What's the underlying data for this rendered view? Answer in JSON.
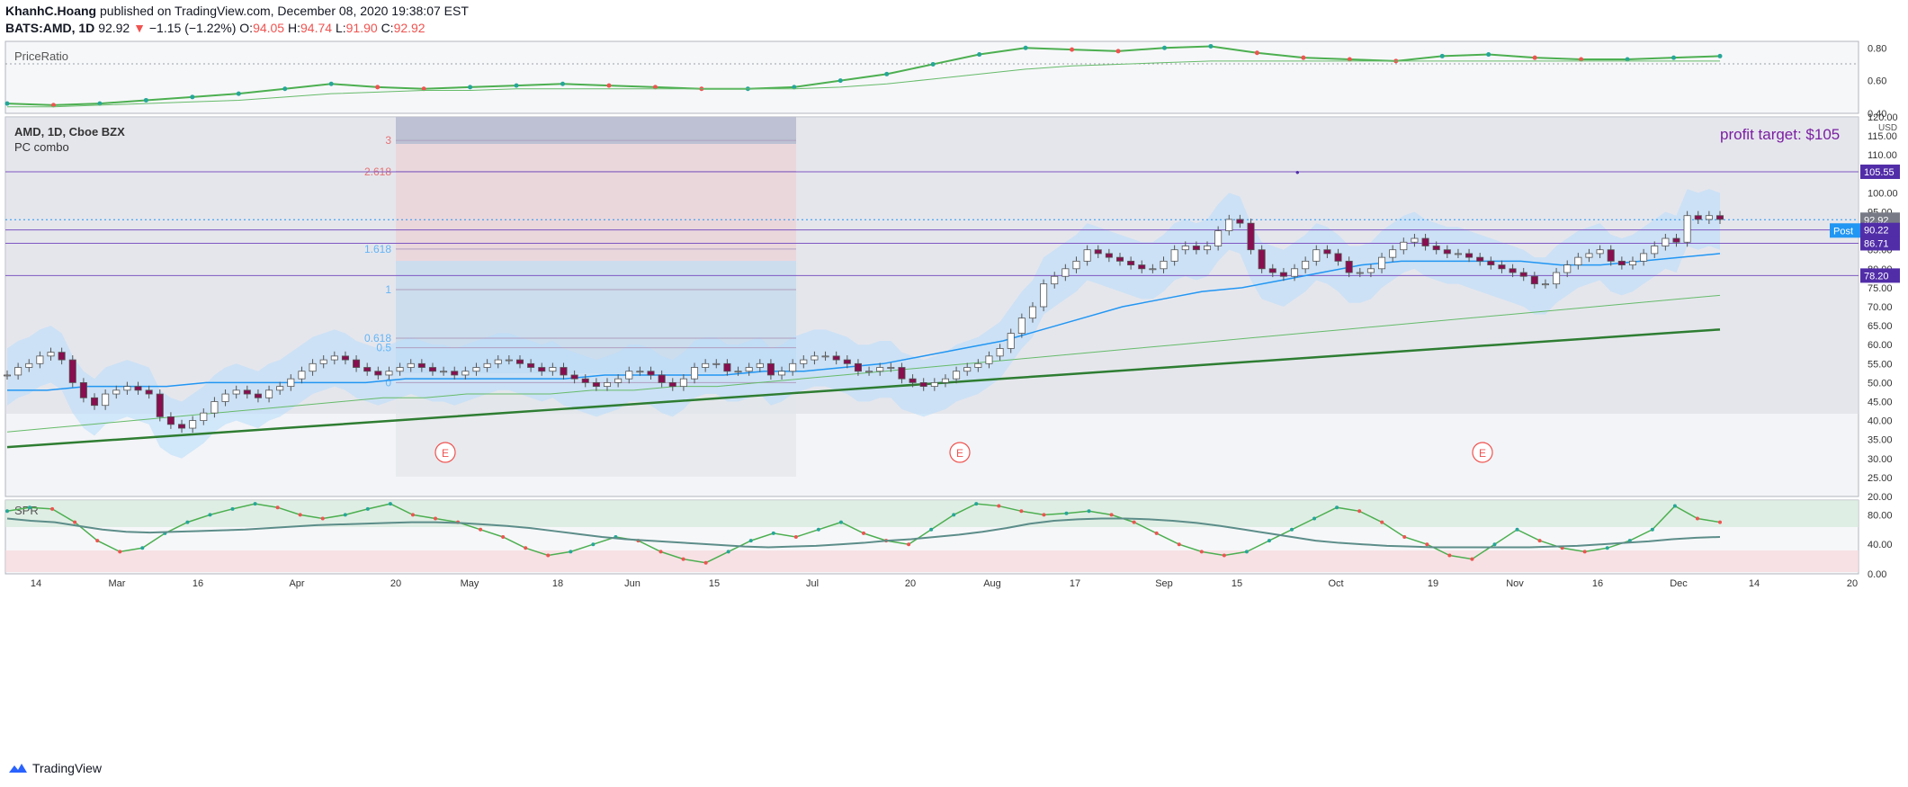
{
  "header": {
    "author": "KhanhC.Hoang",
    "published_text": "published on TradingView.com, December 08, 2020 19:38:07 EST",
    "symbol": "BATS:AMD, 1D",
    "last": "92.92",
    "change": "−1.15 (−1.22%)",
    "o_label": "O:",
    "o": "94.05",
    "h_label": "H:",
    "h": "94.74",
    "l_label": "L:",
    "l": "91.90",
    "c_label": "C:",
    "c": "92.92"
  },
  "footer": {
    "brand": "TradingView"
  },
  "colors": {
    "up": "#26a69a",
    "down": "#ef5350",
    "candle_up": "#ffffff",
    "candle_down": "#880e4f",
    "ma_fast": "#2196f3",
    "ma_mid": "#66bb6a",
    "ma_slow": "#2e7d32",
    "band": "#bbdefb"
  },
  "chart_data": [
    {
      "type": "line",
      "pane": "top",
      "label": "PriceRatio",
      "ylim": [
        0.4,
        0.84
      ],
      "y_ticks": [
        "0.80",
        "0.60",
        "0.40"
      ],
      "series": [
        {
          "values": [
            0.46,
            0.45,
            0.46,
            0.48,
            0.5,
            0.52,
            0.55,
            0.58,
            0.56,
            0.55,
            0.56,
            0.57,
            0.58,
            0.57,
            0.56,
            0.55,
            0.55,
            0.56,
            0.6,
            0.64,
            0.7,
            0.76,
            0.8,
            0.79,
            0.78,
            0.8,
            0.81,
            0.77,
            0.74,
            0.73,
            0.72,
            0.75,
            0.76,
            0.74,
            0.73,
            0.73,
            0.74,
            0.75
          ]
        },
        {
          "values": [
            0.44,
            0.44,
            0.45,
            0.46,
            0.47,
            0.48,
            0.5,
            0.52,
            0.53,
            0.54,
            0.54,
            0.55,
            0.55,
            0.55,
            0.55,
            0.55,
            0.55,
            0.55,
            0.56,
            0.58,
            0.61,
            0.64,
            0.67,
            0.69,
            0.7,
            0.71,
            0.72,
            0.72,
            0.72,
            0.72,
            0.72,
            0.72,
            0.72,
            0.72,
            0.72,
            0.72,
            0.72,
            0.72
          ]
        }
      ]
    },
    {
      "type": "candlestick",
      "pane": "main",
      "title": "AMD, 1D, Cboe BZX",
      "subtitle": "PC combo",
      "currency": "USD",
      "ylim": [
        20,
        120
      ],
      "y_ticks": [
        "120.00",
        "115.00",
        "110.00",
        "105.00",
        "100.00",
        "95.00",
        "90.00",
        "85.00",
        "80.00",
        "75.00",
        "70.00",
        "65.00",
        "60.00",
        "55.00",
        "50.00",
        "45.00",
        "40.00",
        "35.00",
        "30.00",
        "25.00",
        "20.00"
      ],
      "x_ticks": [
        "14",
        "Mar",
        "16",
        "Apr",
        "20",
        "May",
        "18",
        "Jun",
        "15",
        "Jul",
        "20",
        "Aug",
        "17",
        "Sep",
        "15",
        "Oct",
        "19",
        "Nov",
        "16",
        "Dec",
        "14",
        "20"
      ],
      "closes": [
        52,
        54,
        55,
        57,
        58,
        56,
        50,
        46,
        44,
        47,
        48,
        49,
        48,
        47,
        41,
        39,
        38,
        40,
        42,
        45,
        47,
        48,
        47,
        46,
        48,
        49,
        51,
        53,
        55,
        56,
        57,
        56,
        54,
        53,
        52,
        53,
        54,
        55,
        54,
        53,
        53,
        52,
        53,
        54,
        55,
        56,
        56,
        55,
        54,
        53,
        54,
        52,
        51,
        50,
        49,
        50,
        51,
        53,
        53,
        52,
        50,
        49,
        51,
        54,
        55,
        55,
        53,
        53,
        54,
        55,
        52,
        53,
        55,
        56,
        57,
        57,
        56,
        55,
        53,
        53,
        54,
        54,
        51,
        50,
        49,
        50,
        51,
        53,
        54,
        55,
        57,
        59,
        63,
        67,
        70,
        76,
        78,
        80,
        82,
        85,
        84,
        83,
        82,
        81,
        80,
        80,
        82,
        85,
        86,
        85,
        86,
        90,
        93,
        92,
        85,
        80,
        79,
        78,
        80,
        82,
        85,
        84,
        82,
        79,
        79,
        80,
        83,
        85,
        87,
        88,
        86,
        85,
        84,
        84,
        83,
        82,
        81,
        80,
        79,
        78,
        76,
        76,
        79,
        81,
        83,
        84,
        85,
        82,
        81,
        82,
        84,
        86,
        88,
        87,
        94,
        93,
        94,
        93
      ],
      "ma_fast": [
        48,
        48,
        49,
        49,
        49,
        50,
        50,
        50,
        50,
        50,
        51,
        51,
        51,
        51,
        51,
        52,
        52,
        52,
        52,
        53,
        53,
        54,
        55,
        57,
        59,
        61,
        64,
        67,
        70,
        72,
        74,
        75,
        77,
        79,
        81,
        82,
        82,
        82,
        82,
        81,
        81,
        82,
        83,
        84
      ],
      "ma_mid": [
        37,
        38,
        39,
        40,
        41,
        42,
        43,
        44,
        45,
        46,
        46,
        47,
        47,
        47,
        48,
        48,
        49,
        49,
        50,
        51,
        52,
        53,
        54,
        55,
        56,
        57,
        58,
        59,
        60,
        61,
        62,
        63,
        64,
        65,
        66,
        67,
        68,
        69,
        70,
        71,
        72,
        73
      ],
      "ma_slow": [
        33,
        34,
        35,
        36,
        37,
        38,
        39,
        40,
        41,
        42,
        43,
        44,
        45,
        46,
        47,
        48,
        49,
        50,
        51,
        52,
        53,
        54,
        55,
        56,
        57,
        58,
        59,
        60,
        61,
        62,
        63,
        64
      ],
      "fib_labels": [
        "3",
        "2.618",
        "1.618",
        "1",
        "0.618",
        "0.5",
        "0"
      ],
      "fib_levels": [
        113.8,
        105.6,
        85.2,
        74.5,
        61.7,
        59.2,
        50.0
      ],
      "horizontal_levels": [
        105.55,
        90.22,
        86.71,
        78.2
      ],
      "price_labels": [
        {
          "text": "105.55",
          "color": "#512da8"
        },
        {
          "text": "92.92",
          "color": "#787b86"
        },
        {
          "text": "92.92",
          "color": "#2196f3"
        },
        {
          "text": "90.22",
          "color": "#512da8"
        },
        {
          "text": "86.71",
          "color": "#512da8"
        },
        {
          "text": "78.20",
          "color": "#512da8"
        }
      ],
      "post_label": "Post",
      "annotation": "profit target: $105",
      "earnings_marker": "E"
    },
    {
      "type": "line",
      "pane": "bottom",
      "label": "SPR",
      "ylim": [
        0,
        100
      ],
      "y_ticks": [
        "80.00",
        "40.00",
        "0.00"
      ],
      "series": [
        {
          "values": [
            85,
            90,
            88,
            70,
            45,
            30,
            35,
            55,
            70,
            80,
            88,
            95,
            90,
            80,
            75,
            80,
            88,
            95,
            80,
            75,
            70,
            60,
            50,
            35,
            25,
            30,
            40,
            50,
            45,
            30,
            20,
            15,
            30,
            45,
            55,
            50,
            60,
            70,
            55,
            45,
            40,
            60,
            80,
            95,
            92,
            85,
            80,
            82,
            85,
            80,
            70,
            55,
            40,
            30,
            25,
            30,
            45,
            60,
            75,
            90,
            85,
            70,
            50,
            40,
            25,
            20,
            40,
            60,
            45,
            35,
            30,
            35,
            45,
            60,
            92,
            75,
            70
          ]
        },
        {
          "values": [
            75,
            72,
            70,
            65,
            60,
            57,
            56,
            57,
            58,
            59,
            60,
            62,
            64,
            66,
            67,
            68,
            69,
            70,
            70,
            69,
            67,
            65,
            62,
            58,
            54,
            50,
            47,
            45,
            43,
            41,
            39,
            37,
            36,
            37,
            38,
            40,
            42,
            45,
            47,
            50,
            53,
            57,
            62,
            68,
            72,
            74,
            75,
            75,
            74,
            72,
            69,
            65,
            60,
            55,
            50,
            45,
            42,
            40,
            38,
            37,
            36,
            36,
            36,
            36,
            36,
            37,
            38,
            40,
            42,
            44,
            47,
            49,
            50
          ]
        }
      ]
    }
  ]
}
